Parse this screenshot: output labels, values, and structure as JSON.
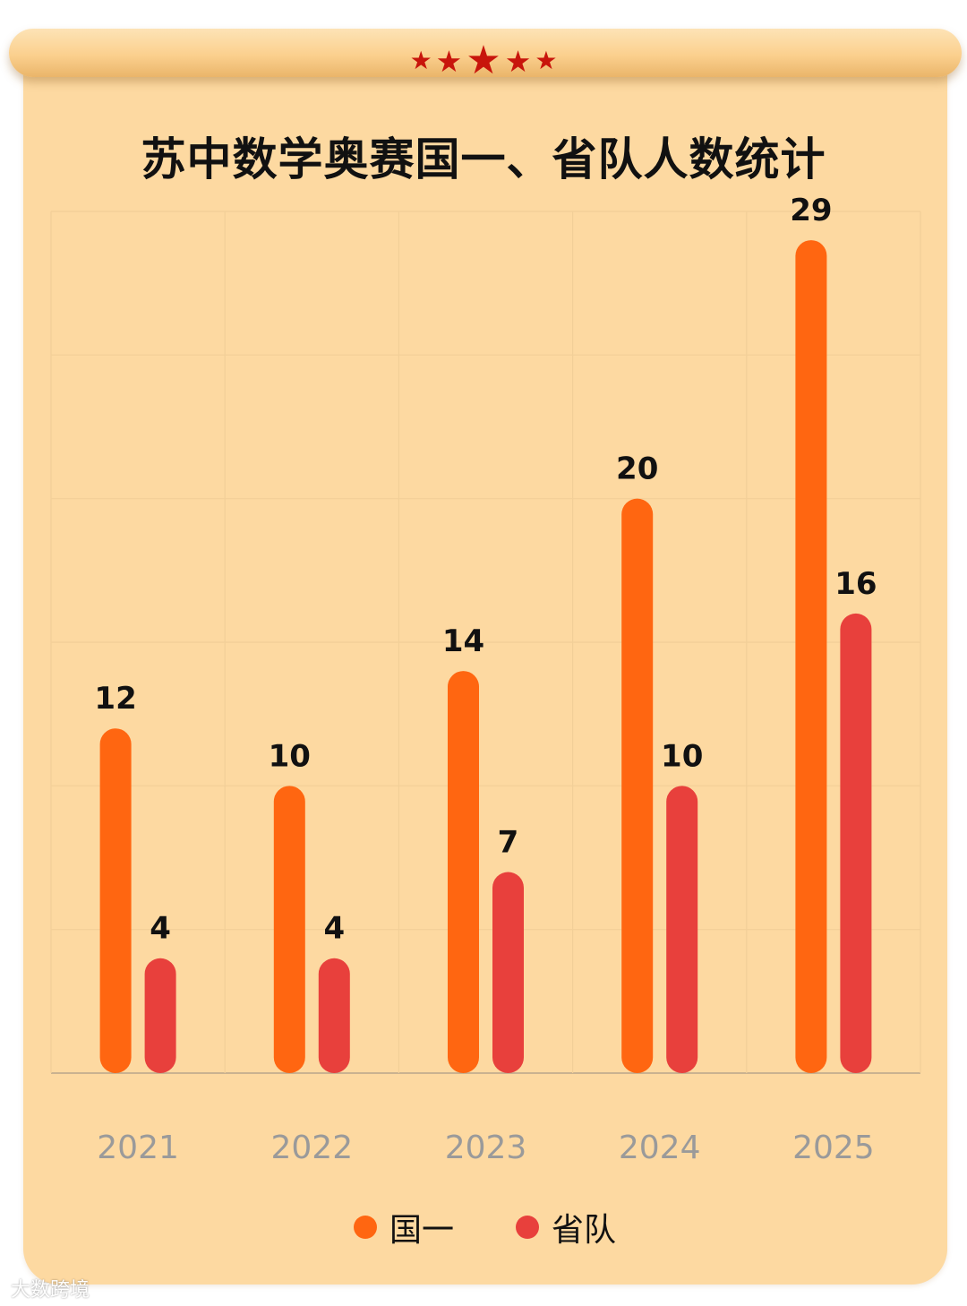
{
  "header": {
    "stars": [
      "★",
      "★",
      "★",
      "★",
      "★"
    ]
  },
  "watermark": "大数跨境",
  "colors": {
    "card_background": "#fdd9a1",
    "guo_yi": "#ff6611",
    "sheng_dui": "#e8403c",
    "tick_label": "#9a9a9a",
    "star": "#c8150c"
  },
  "chart_data": {
    "type": "bar",
    "title": "苏中数学奥赛国一、省队人数统计",
    "categories": [
      "2021",
      "2022",
      "2023",
      "2024",
      "2025"
    ],
    "series": [
      {
        "name": "国一",
        "values": [
          12,
          10,
          14,
          20,
          29
        ],
        "color": "#ff6611"
      },
      {
        "name": "省队",
        "values": [
          4,
          4,
          7,
          10,
          16
        ],
        "color": "#e8403c"
      }
    ],
    "xlabel": "",
    "ylabel": "",
    "ylim": [
      0,
      30
    ],
    "grid": true,
    "legend": "bottom"
  }
}
